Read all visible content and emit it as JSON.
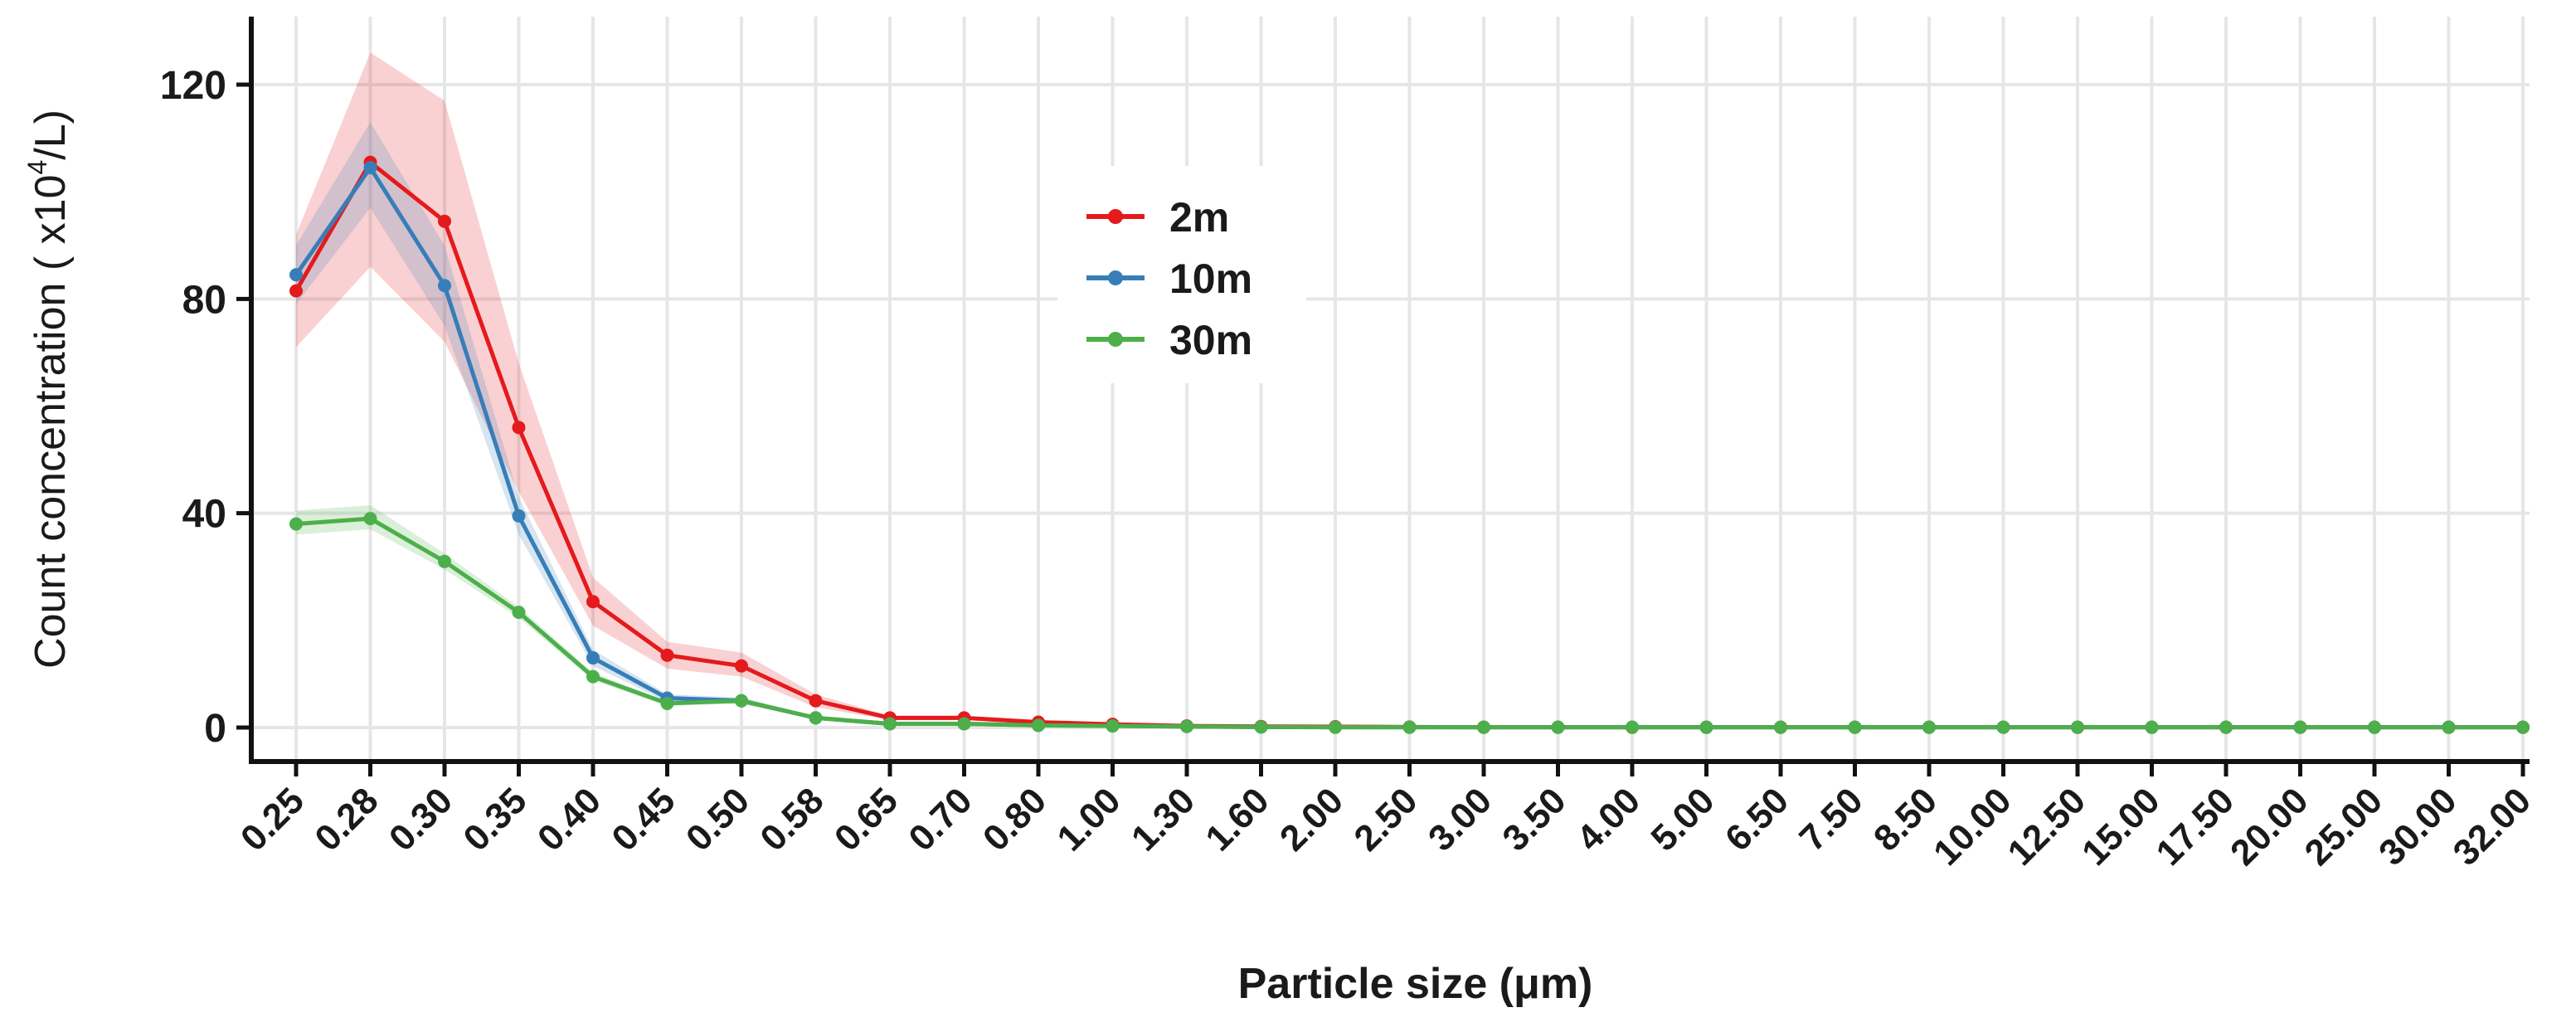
{
  "chart_data": {
    "type": "line",
    "title": "",
    "xlabel": "Particle size (μm)",
    "ylabel": {
      "prefix": "Count concentration (  x10",
      "superscript": "4",
      "suffix": "/L)"
    },
    "categories": [
      "0.25",
      "0.28",
      "0.30",
      "0.35",
      "0.40",
      "0.45",
      "0.50",
      "0.58",
      "0.65",
      "0.70",
      "0.80",
      "1.00",
      "1.30",
      "1.60",
      "2.00",
      "2.50",
      "3.00",
      "3.50",
      "4.00",
      "5.00",
      "6.50",
      "7.50",
      "8.50",
      "10.00",
      "12.50",
      "15.00",
      "17.50",
      "20.00",
      "25.00",
      "30.00",
      "32.00"
    ],
    "ylim": [
      -6,
      132
    ],
    "yticks": [
      0,
      40,
      80,
      120
    ],
    "grid": true,
    "legend_position": "upper-middle",
    "series": [
      {
        "name": "2m",
        "color": "#e41a1c",
        "values": [
          81.5,
          105.5,
          94.5,
          56,
          23.5,
          13.5,
          11.5,
          5,
          1.8,
          1.8,
          1,
          0.6,
          0.3,
          0.2,
          0.15,
          0.1,
          0.05,
          0.05,
          0.05,
          0.05,
          0.05,
          0.05,
          0.05,
          0.05,
          0.05,
          0.05,
          0.05,
          0.05,
          0.05,
          0.05,
          0.05
        ],
        "lower": [
          71,
          86,
          72,
          44,
          19,
          11,
          9.5,
          3.8,
          1.4,
          1.4,
          0.7,
          0.4,
          0.2,
          0.1,
          0.1,
          0.05,
          0,
          0,
          0,
          0,
          0,
          0,
          0,
          0,
          0,
          0,
          0,
          0,
          0,
          0,
          0
        ],
        "upper": [
          92,
          126,
          117,
          68,
          28,
          16,
          14,
          6.2,
          2.2,
          2.2,
          1.3,
          0.8,
          0.4,
          0.3,
          0.2,
          0.15,
          0.1,
          0.1,
          0.1,
          0.1,
          0.1,
          0.1,
          0.1,
          0.1,
          0.1,
          0.1,
          0.1,
          0.1,
          0.1,
          0.1,
          0.1
        ]
      },
      {
        "name": "10m",
        "color": "#377eb8",
        "values": [
          84.5,
          104.5,
          82.5,
          39.5,
          13,
          5.5,
          5,
          1.8,
          0.7,
          0.7,
          0.4,
          0.3,
          0.2,
          0.1,
          0.05,
          0.05,
          0.05,
          0.05,
          0.05,
          0.05,
          0.05,
          0.05,
          0.05,
          0.05,
          0.05,
          0.05,
          0.05,
          0.05,
          0.05,
          0.05,
          0.05
        ],
        "lower": [
          79,
          97,
          75,
          36,
          11.5,
          4.8,
          4.4,
          1.5,
          0.5,
          0.5,
          0.3,
          0.2,
          0.1,
          0.05,
          0,
          0,
          0,
          0,
          0,
          0,
          0,
          0,
          0,
          0,
          0,
          0,
          0,
          0,
          0,
          0,
          0
        ],
        "upper": [
          90,
          113,
          90,
          43,
          14.5,
          6.2,
          5.6,
          2.1,
          0.9,
          0.9,
          0.5,
          0.4,
          0.3,
          0.15,
          0.1,
          0.1,
          0.1,
          0.1,
          0.1,
          0.1,
          0.1,
          0.1,
          0.1,
          0.1,
          0.1,
          0.1,
          0.1,
          0.1,
          0.1,
          0.1,
          0.1
        ]
      },
      {
        "name": "30m",
        "color": "#4daf4a",
        "values": [
          38,
          39,
          31,
          21.5,
          9.5,
          4.5,
          5,
          1.8,
          0.7,
          0.7,
          0.4,
          0.3,
          0.2,
          0.1,
          0.05,
          0.05,
          0.05,
          0.05,
          0.05,
          0.05,
          0.05,
          0.05,
          0.05,
          0.05,
          0.05,
          0.05,
          0.05,
          0.05,
          0.05,
          0.05,
          0.05
        ],
        "lower": [
          36,
          37,
          29.5,
          20.5,
          8.8,
          4,
          4.5,
          1.5,
          0.5,
          0.5,
          0.3,
          0.2,
          0.1,
          0.05,
          0,
          0,
          0,
          0,
          0,
          0,
          0,
          0,
          0,
          0,
          0,
          0,
          0,
          0,
          0,
          0,
          0
        ],
        "upper": [
          40.5,
          41.5,
          32.5,
          22.5,
          10.2,
          5,
          5.5,
          2.1,
          0.9,
          0.9,
          0.5,
          0.4,
          0.3,
          0.15,
          0.1,
          0.1,
          0.1,
          0.1,
          0.1,
          0.1,
          0.1,
          0.1,
          0.1,
          0.1,
          0.1,
          0.1,
          0.1,
          0.1,
          0.1,
          0.1,
          0.1
        ]
      }
    ]
  }
}
